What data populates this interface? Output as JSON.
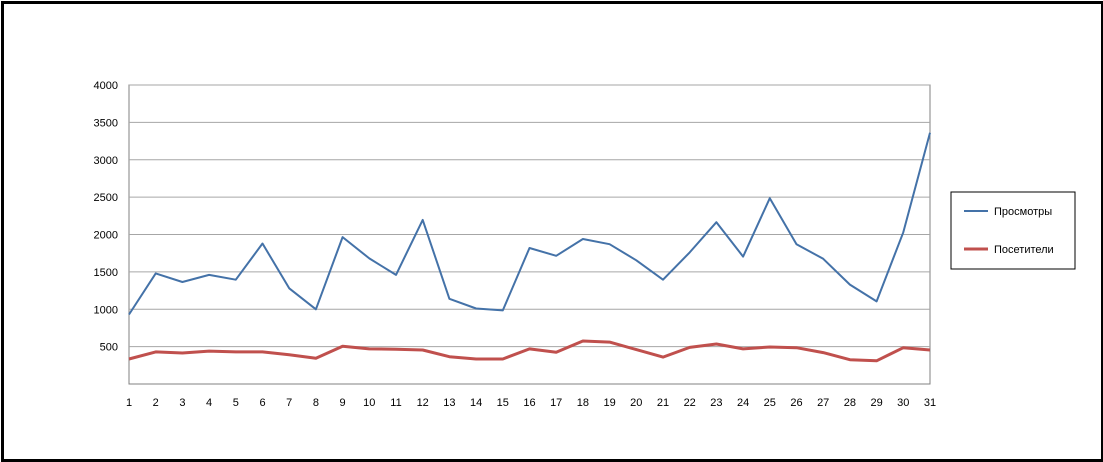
{
  "chart_data": {
    "type": "line",
    "title": "",
    "xlabel": "",
    "ylabel": "",
    "x": [
      1,
      2,
      3,
      4,
      5,
      6,
      7,
      8,
      9,
      10,
      11,
      12,
      13,
      14,
      15,
      16,
      17,
      18,
      19,
      20,
      21,
      22,
      23,
      24,
      25,
      26,
      27,
      28,
      29,
      30,
      31
    ],
    "ylim": [
      0,
      4000
    ],
    "yticks": [
      500,
      1000,
      1500,
      2000,
      2500,
      3000,
      3500,
      4000
    ],
    "grid": true,
    "legend_position": "right",
    "series": [
      {
        "name": "Просмотры",
        "color": "#4472a8",
        "values": [
          930,
          1480,
          1365,
          1460,
          1395,
          1880,
          1280,
          1000,
          1965,
          1680,
          1460,
          2195,
          1140,
          1010,
          985,
          1820,
          1715,
          1940,
          1870,
          1655,
          1395,
          1760,
          2165,
          1705,
          2485,
          1870,
          1675,
          1330,
          1105,
          2030,
          3360
        ]
      },
      {
        "name": "Посетители",
        "color": "#c0504d",
        "values": [
          335,
          430,
          415,
          440,
          430,
          430,
          390,
          345,
          505,
          470,
          465,
          455,
          365,
          335,
          335,
          470,
          425,
          575,
          560,
          460,
          360,
          490,
          535,
          470,
          495,
          485,
          420,
          325,
          310,
          485,
          455
        ]
      }
    ]
  }
}
